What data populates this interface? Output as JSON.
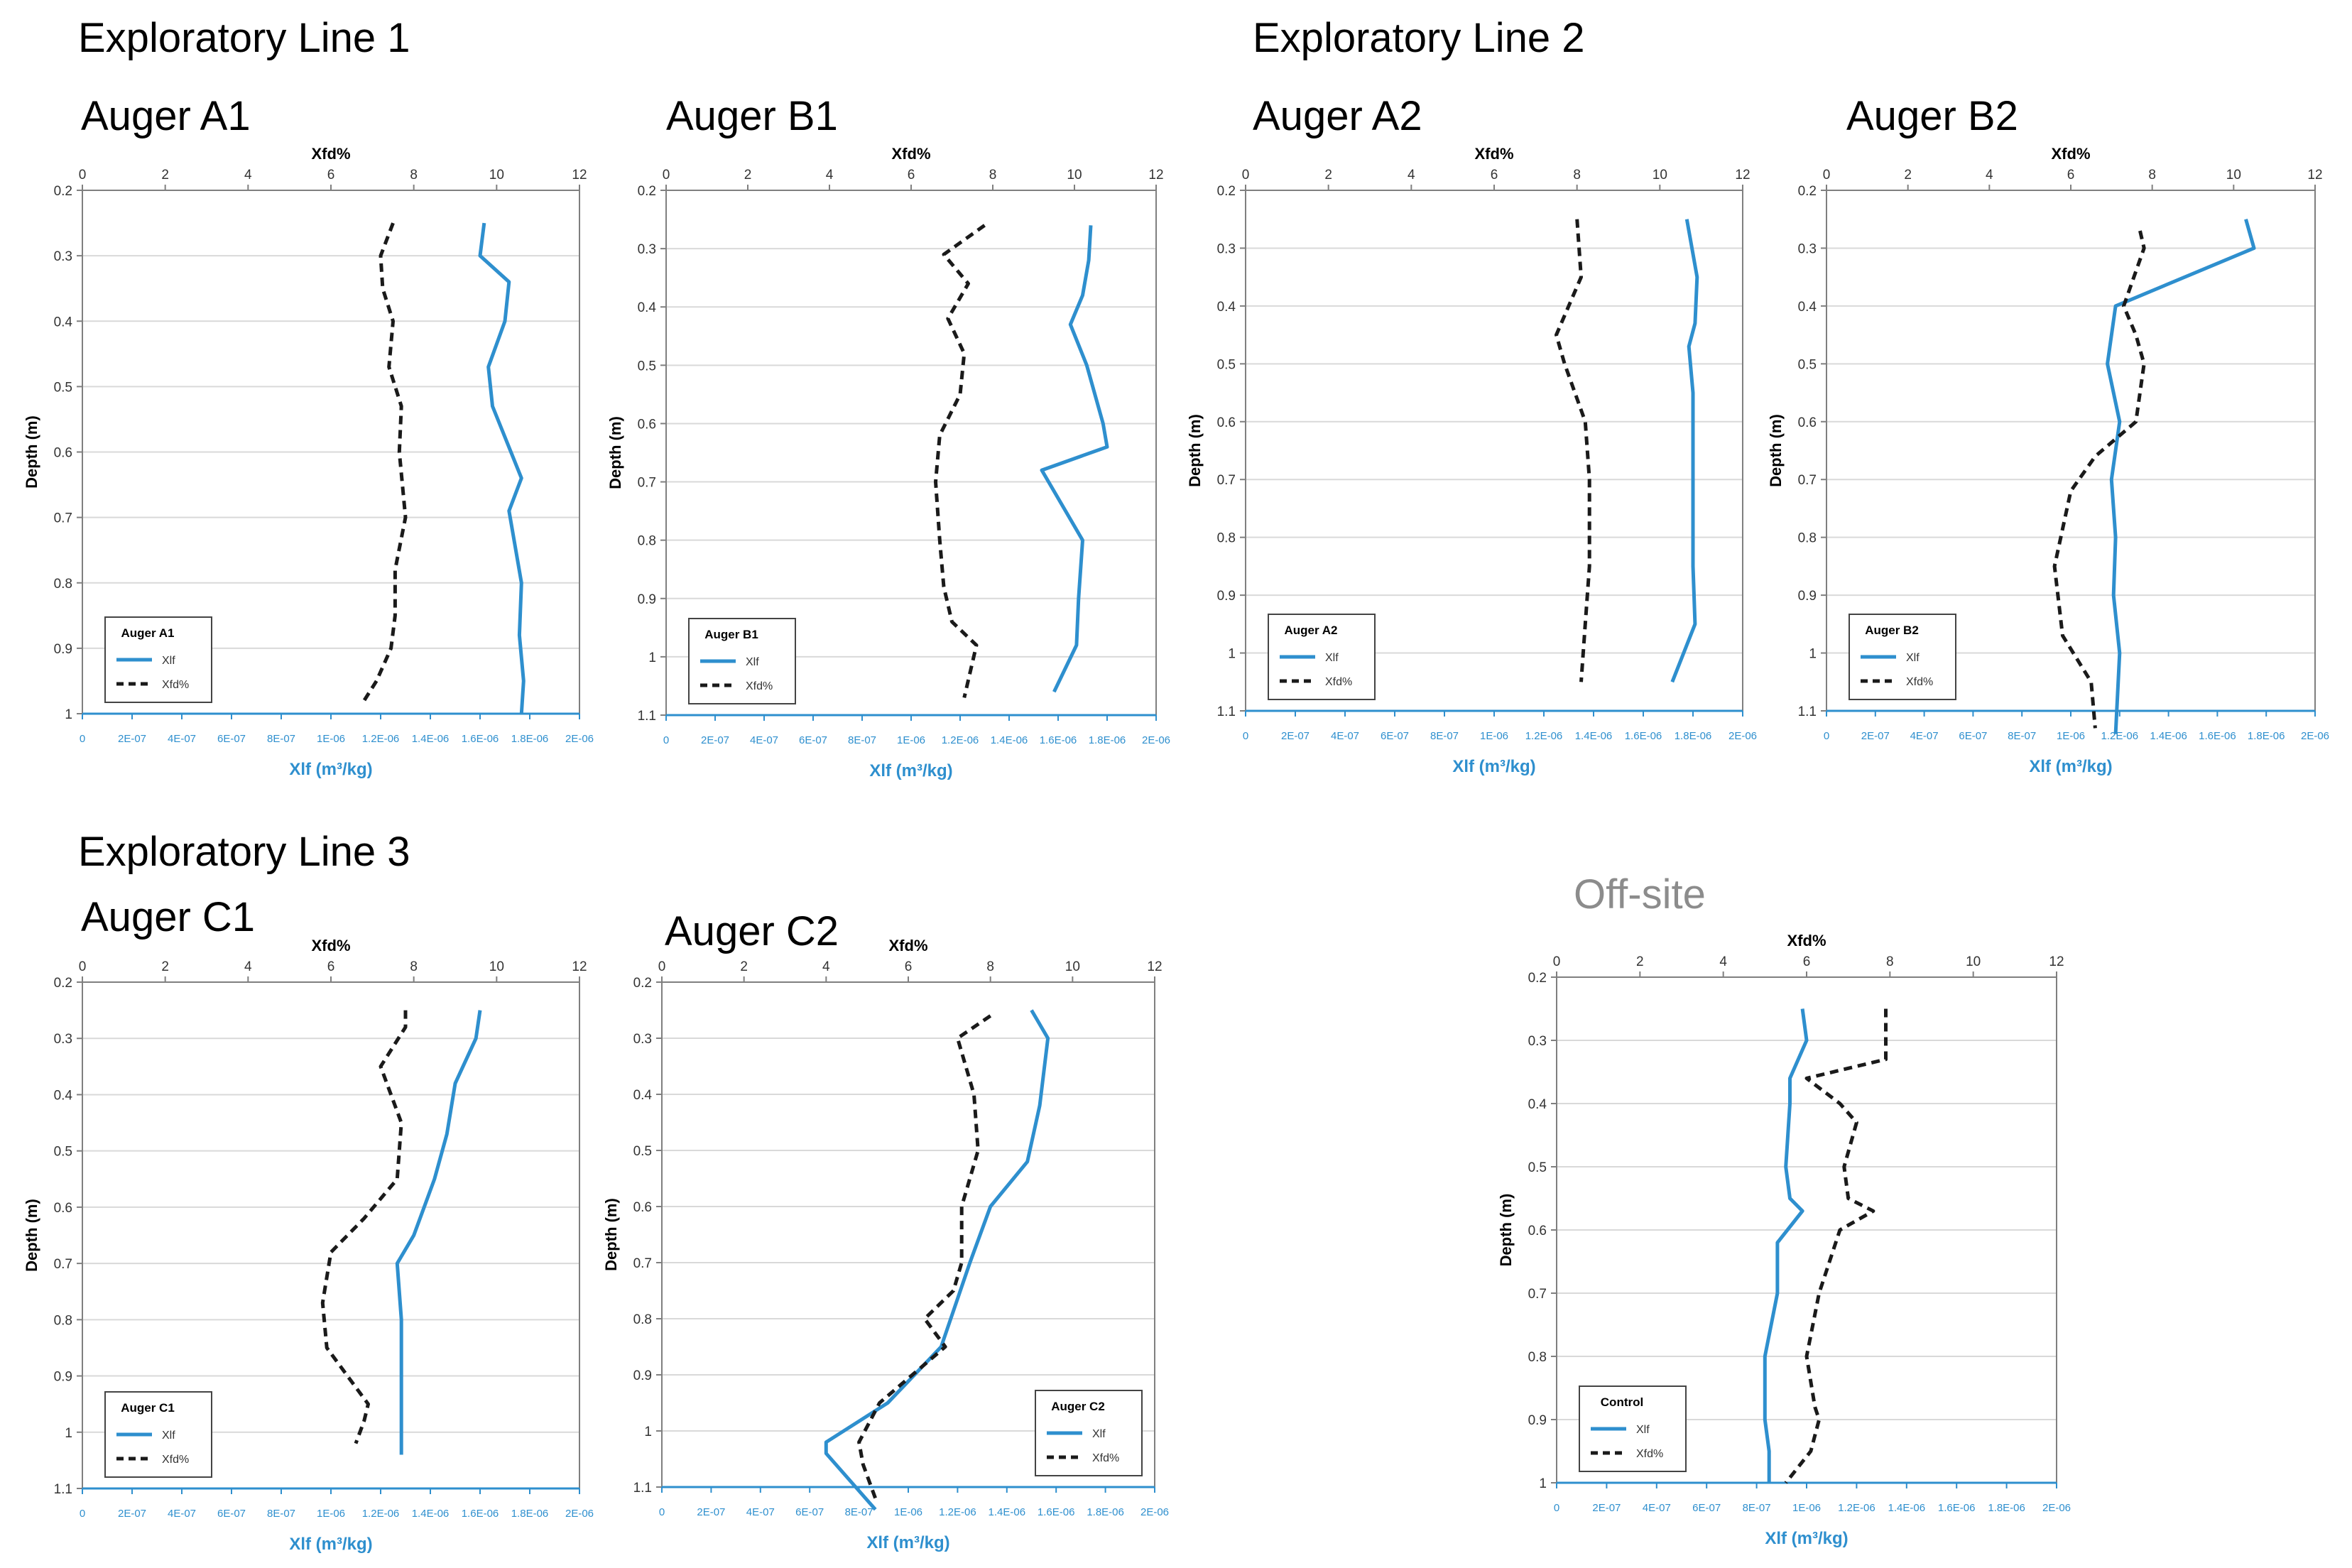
{
  "section_titles": {
    "line1": "Exploratory Line 1",
    "line2": "Exploratory Line 2",
    "line3": "Exploratory Line 3",
    "offsite": "Off-site"
  },
  "colors": {
    "xlf_line": "#2e8fce",
    "xfd_line": "#1a1a1a",
    "grid": "#d9d9d9",
    "axis_blue": "#2e8fce",
    "frame": "#7f7f7f"
  },
  "chart_data": [
    {
      "id": "A1",
      "type": "line",
      "title": "Auger A1",
      "x_top_label": "Xfd%",
      "x_bottom_label": "Xlf (m³/kg)",
      "ylabel": "Depth (m)",
      "xfd_lim": [
        0,
        12
      ],
      "xfd_ticks": [
        "0",
        "2",
        "4",
        "6",
        "8",
        "10",
        "12"
      ],
      "xlf_ticks": [
        "0",
        "2E-07",
        "4E-07",
        "6E-07",
        "8E-07",
        "1E-06",
        "1.2E-06",
        "1.4E-06",
        "1.6E-06",
        "1.8E-06",
        "2E-06"
      ],
      "ylim": [
        0.2,
        1.0
      ],
      "yticks": [
        "0.2",
        "0.3",
        "0.4",
        "0.5",
        "0.6",
        "0.7",
        "0.8",
        "0.9",
        "1"
      ],
      "legend": {
        "title": "Auger A1",
        "items": [
          "Xlf",
          "Xfd%"
        ]
      },
      "series": [
        {
          "name": "Xlf",
          "style": "solid",
          "axis": "xlf",
          "xfd_equiv": [
            9.7,
            9.6,
            10.3,
            10.2,
            9.8,
            9.9,
            10.6,
            10.3,
            10.6,
            10.55,
            10.65,
            10.6
          ],
          "depth": [
            0.25,
            0.3,
            0.34,
            0.4,
            0.47,
            0.53,
            0.64,
            0.69,
            0.8,
            0.88,
            0.95,
            1.0
          ]
        },
        {
          "name": "Xfd%",
          "style": "dashed",
          "axis": "xfd",
          "values": [
            7.5,
            7.2,
            7.25,
            7.5,
            7.4,
            7.7,
            7.65,
            7.8,
            7.55,
            7.55,
            7.45,
            7.1,
            6.8
          ],
          "depth": [
            0.25,
            0.3,
            0.35,
            0.4,
            0.47,
            0.53,
            0.6,
            0.7,
            0.78,
            0.85,
            0.9,
            0.95,
            0.98
          ]
        }
      ]
    },
    {
      "id": "B1",
      "type": "line",
      "title": "Auger B1",
      "x_top_label": "Xfd%",
      "x_bottom_label": "Xlf (m³/kg)",
      "ylabel": "Depth (m)",
      "xfd_lim": [
        0,
        12
      ],
      "xfd_ticks": [
        "0",
        "2",
        "4",
        "6",
        "8",
        "10",
        "12"
      ],
      "xlf_ticks": [
        "0",
        "2E-07",
        "4E-07",
        "6E-07",
        "8E-07",
        "1E-06",
        "1.2E-06",
        "1.4E-06",
        "1.6E-06",
        "1.8E-06",
        "2E-06"
      ],
      "ylim": [
        0.2,
        1.1
      ],
      "yticks": [
        "0.2",
        "0.3",
        "0.4",
        "0.5",
        "0.6",
        "0.7",
        "0.8",
        "0.9",
        "1",
        "1.1"
      ],
      "legend": {
        "title": "Auger B1",
        "items": [
          "Xlf",
          "Xfd%"
        ]
      },
      "series": [
        {
          "name": "Xlf",
          "style": "solid",
          "axis": "xlf",
          "xfd_equiv": [
            10.4,
            10.35,
            10.2,
            9.9,
            10.3,
            10.7,
            10.8,
            9.2,
            10.2,
            10.1,
            10.05,
            9.5
          ],
          "depth": [
            0.26,
            0.32,
            0.38,
            0.43,
            0.5,
            0.6,
            0.64,
            0.68,
            0.8,
            0.9,
            0.98,
            1.06
          ]
        },
        {
          "name": "Xfd%",
          "style": "dashed",
          "axis": "xfd",
          "values": [
            7.8,
            6.8,
            7.4,
            6.9,
            7.3,
            7.2,
            6.7,
            6.6,
            6.7,
            6.8,
            7.0,
            7.6,
            7.3
          ],
          "depth": [
            0.26,
            0.31,
            0.36,
            0.42,
            0.48,
            0.55,
            0.62,
            0.7,
            0.8,
            0.88,
            0.94,
            0.98,
            1.07
          ]
        }
      ]
    },
    {
      "id": "A2",
      "type": "line",
      "title": "Auger A2",
      "x_top_label": "Xfd%",
      "x_bottom_label": "Xlf (m³/kg)",
      "ylabel": "Depth (m)",
      "xfd_lim": [
        0,
        12
      ],
      "xfd_ticks": [
        "0",
        "2",
        "4",
        "6",
        "8",
        "10",
        "12"
      ],
      "xlf_ticks": [
        "0",
        "2E-07",
        "4E-07",
        "6E-07",
        "8E-07",
        "1E-06",
        "1.2E-06",
        "1.4E-06",
        "1.6E-06",
        "1.8E-06",
        "2E-06"
      ],
      "ylim": [
        0.2,
        1.1
      ],
      "yticks": [
        "0.2",
        "0.3",
        "0.4",
        "0.5",
        "0.6",
        "0.7",
        "0.8",
        "0.9",
        "1",
        "1.1"
      ],
      "legend": {
        "title": "Auger A2",
        "items": [
          "Xlf",
          "Xfd%"
        ]
      },
      "series": [
        {
          "name": "Xlf",
          "style": "solid",
          "axis": "xlf",
          "xfd_equiv": [
            10.65,
            10.9,
            10.85,
            10.7,
            10.8,
            10.8,
            10.8,
            10.85,
            10.3
          ],
          "depth": [
            0.25,
            0.35,
            0.43,
            0.47,
            0.55,
            0.7,
            0.85,
            0.95,
            1.05
          ]
        },
        {
          "name": "Xfd%",
          "style": "dashed",
          "axis": "xfd",
          "values": [
            8.0,
            8.1,
            7.8,
            7.5,
            7.7,
            8.2,
            8.3,
            8.3,
            8.2,
            8.1
          ],
          "depth": [
            0.25,
            0.35,
            0.4,
            0.45,
            0.5,
            0.6,
            0.7,
            0.85,
            0.95,
            1.05
          ]
        }
      ]
    },
    {
      "id": "B2",
      "type": "line",
      "title": "Auger B2",
      "x_top_label": "Xfd%",
      "x_bottom_label": "Xlf (m³/kg)",
      "ylabel": "Depth (m)",
      "xfd_lim": [
        0,
        12
      ],
      "xfd_ticks": [
        "0",
        "2",
        "4",
        "6",
        "8",
        "10",
        "12"
      ],
      "xlf_ticks": [
        "0",
        "2E-07",
        "4E-07",
        "6E-07",
        "8E-07",
        "1E-06",
        "1.2E-06",
        "1.4E-06",
        "1.6E-06",
        "1.8E-06",
        "2E-06"
      ],
      "ylim": [
        0.2,
        1.1
      ],
      "yticks": [
        "0.2",
        "0.3",
        "0.4",
        "0.5",
        "0.6",
        "0.7",
        "0.8",
        "0.9",
        "1",
        "1.1"
      ],
      "legend": {
        "title": "Auger B2",
        "items": [
          "Xlf",
          "Xfd%"
        ]
      },
      "series": [
        {
          "name": "Xlf",
          "style": "solid",
          "axis": "xlf",
          "xfd_equiv": [
            10.3,
            10.5,
            7.1,
            6.9,
            7.2,
            7.0,
            7.1,
            7.05,
            7.2,
            7.1
          ],
          "depth": [
            0.25,
            0.3,
            0.4,
            0.5,
            0.6,
            0.7,
            0.8,
            0.9,
            1.0,
            1.14
          ]
        },
        {
          "name": "Xfd%",
          "style": "dashed",
          "axis": "xfd",
          "values": [
            7.7,
            7.8,
            7.3,
            7.6,
            7.8,
            7.6,
            6.6,
            6.0,
            5.6,
            5.8,
            6.5,
            6.6
          ],
          "depth": [
            0.27,
            0.3,
            0.4,
            0.45,
            0.5,
            0.6,
            0.66,
            0.72,
            0.85,
            0.97,
            1.05,
            1.13
          ]
        }
      ]
    },
    {
      "id": "C1",
      "type": "line",
      "title": "Auger C1",
      "x_top_label": "Xfd%",
      "x_bottom_label": "Xlf (m³/kg)",
      "ylabel": "Depth (m)",
      "xfd_lim": [
        0,
        12
      ],
      "xfd_ticks": [
        "0",
        "2",
        "4",
        "6",
        "8",
        "10",
        "12"
      ],
      "xlf_ticks": [
        "0",
        "2E-07",
        "4E-07",
        "6E-07",
        "8E-07",
        "1E-06",
        "1.2E-06",
        "1.4E-06",
        "1.6E-06",
        "1.8E-06",
        "2E-06"
      ],
      "ylim": [
        0.2,
        1.1
      ],
      "yticks": [
        "0.2",
        "0.3",
        "0.4",
        "0.5",
        "0.6",
        "0.7",
        "0.8",
        "0.9",
        "1",
        "1.1"
      ],
      "legend": {
        "title": "Auger C1",
        "items": [
          "Xlf",
          "Xfd%"
        ]
      },
      "series": [
        {
          "name": "Xlf",
          "style": "solid",
          "axis": "xlf",
          "xfd_equiv": [
            9.6,
            9.5,
            9.0,
            8.8,
            8.5,
            8.0,
            7.6,
            7.7,
            7.7,
            7.7,
            7.7
          ],
          "depth": [
            0.25,
            0.3,
            0.38,
            0.47,
            0.55,
            0.65,
            0.7,
            0.8,
            0.9,
            0.97,
            1.04
          ]
        },
        {
          "name": "Xfd%",
          "style": "dashed",
          "axis": "xfd",
          "values": [
            7.8,
            7.8,
            7.2,
            7.7,
            7.6,
            6.8,
            6.0,
            5.8,
            5.9,
            6.4,
            6.9,
            6.8,
            6.6
          ],
          "depth": [
            0.25,
            0.28,
            0.35,
            0.45,
            0.55,
            0.62,
            0.68,
            0.77,
            0.85,
            0.9,
            0.95,
            0.98,
            1.02
          ]
        }
      ]
    },
    {
      "id": "C2",
      "type": "line",
      "title": "Auger C2",
      "x_top_label": "Xfd%",
      "x_bottom_label": "Xlf (m³/kg)",
      "ylabel": "Depth (m)",
      "xfd_lim": [
        0,
        12
      ],
      "xfd_ticks": [
        "0",
        "2",
        "4",
        "6",
        "8",
        "10",
        "12"
      ],
      "xlf_ticks": [
        "0",
        "2E-07",
        "4E-07",
        "6E-07",
        "8E-07",
        "1E-06",
        "1.2E-06",
        "1.4E-06",
        "1.6E-06",
        "1.8E-06",
        "2E-06"
      ],
      "ylim": [
        0.2,
        1.1
      ],
      "yticks": [
        "0.2",
        "0.3",
        "0.4",
        "0.5",
        "0.6",
        "0.7",
        "0.8",
        "0.9",
        "1",
        "1.1"
      ],
      "legend": {
        "title": "Auger C2",
        "items": [
          "Xlf",
          "Xfd%"
        ]
      },
      "series": [
        {
          "name": "Xlf",
          "style": "solid",
          "axis": "xlf",
          "xfd_equiv": [
            9.0,
            9.4,
            9.2,
            8.9,
            8.0,
            7.5,
            6.8,
            5.5,
            4.0,
            4.0,
            5.2
          ],
          "depth": [
            0.25,
            0.3,
            0.42,
            0.52,
            0.6,
            0.7,
            0.85,
            0.95,
            1.02,
            1.04,
            1.14
          ]
        },
        {
          "name": "Xfd%",
          "style": "dashed",
          "axis": "xfd",
          "values": [
            8.0,
            7.2,
            7.6,
            7.7,
            7.3,
            7.3,
            7.1,
            6.4,
            6.9,
            5.3,
            4.8,
            4.9,
            5.2
          ],
          "depth": [
            0.26,
            0.3,
            0.4,
            0.5,
            0.6,
            0.7,
            0.75,
            0.8,
            0.85,
            0.95,
            1.02,
            1.06,
            1.12
          ]
        }
      ]
    },
    {
      "id": "Control",
      "type": "line",
      "title": "",
      "x_top_label": "Xfd%",
      "x_bottom_label": "Xlf (m³/kg)",
      "ylabel": "Depth (m)",
      "xfd_lim": [
        0,
        12
      ],
      "xfd_ticks": [
        "0",
        "2",
        "4",
        "6",
        "8",
        "10",
        "12"
      ],
      "xlf_ticks": [
        "0",
        "2E-07",
        "4E-07",
        "6E-07",
        "8E-07",
        "1E-06",
        "1.2E-06",
        "1.4E-06",
        "1.6E-06",
        "1.8E-06",
        "2E-06"
      ],
      "ylim": [
        0.2,
        1.0
      ],
      "yticks": [
        "0.2",
        "0.3",
        "0.4",
        "0.5",
        "0.6",
        "0.7",
        "0.8",
        "0.9",
        "1"
      ],
      "legend": {
        "title": "Control",
        "items": [
          "Xlf",
          "Xfd%"
        ]
      },
      "series": [
        {
          "name": "Xlf",
          "style": "solid",
          "axis": "xlf",
          "xfd_equiv": [
            5.9,
            6.0,
            5.6,
            5.6,
            5.5,
            5.6,
            5.9,
            5.3,
            5.3,
            5.0,
            5.0,
            5.1,
            5.1
          ],
          "depth": [
            0.25,
            0.3,
            0.36,
            0.4,
            0.5,
            0.55,
            0.57,
            0.62,
            0.7,
            0.8,
            0.9,
            0.95,
            1.0
          ]
        },
        {
          "name": "Xfd%",
          "style": "dashed",
          "axis": "xfd",
          "values": [
            7.9,
            7.9,
            6.0,
            6.8,
            7.2,
            6.9,
            7.0,
            7.6,
            6.8,
            6.3,
            6.0,
            6.2,
            6.3,
            6.1,
            5.5
          ],
          "depth": [
            0.25,
            0.33,
            0.36,
            0.4,
            0.43,
            0.5,
            0.55,
            0.57,
            0.6,
            0.7,
            0.8,
            0.88,
            0.9,
            0.95,
            1.0
          ]
        }
      ]
    }
  ]
}
